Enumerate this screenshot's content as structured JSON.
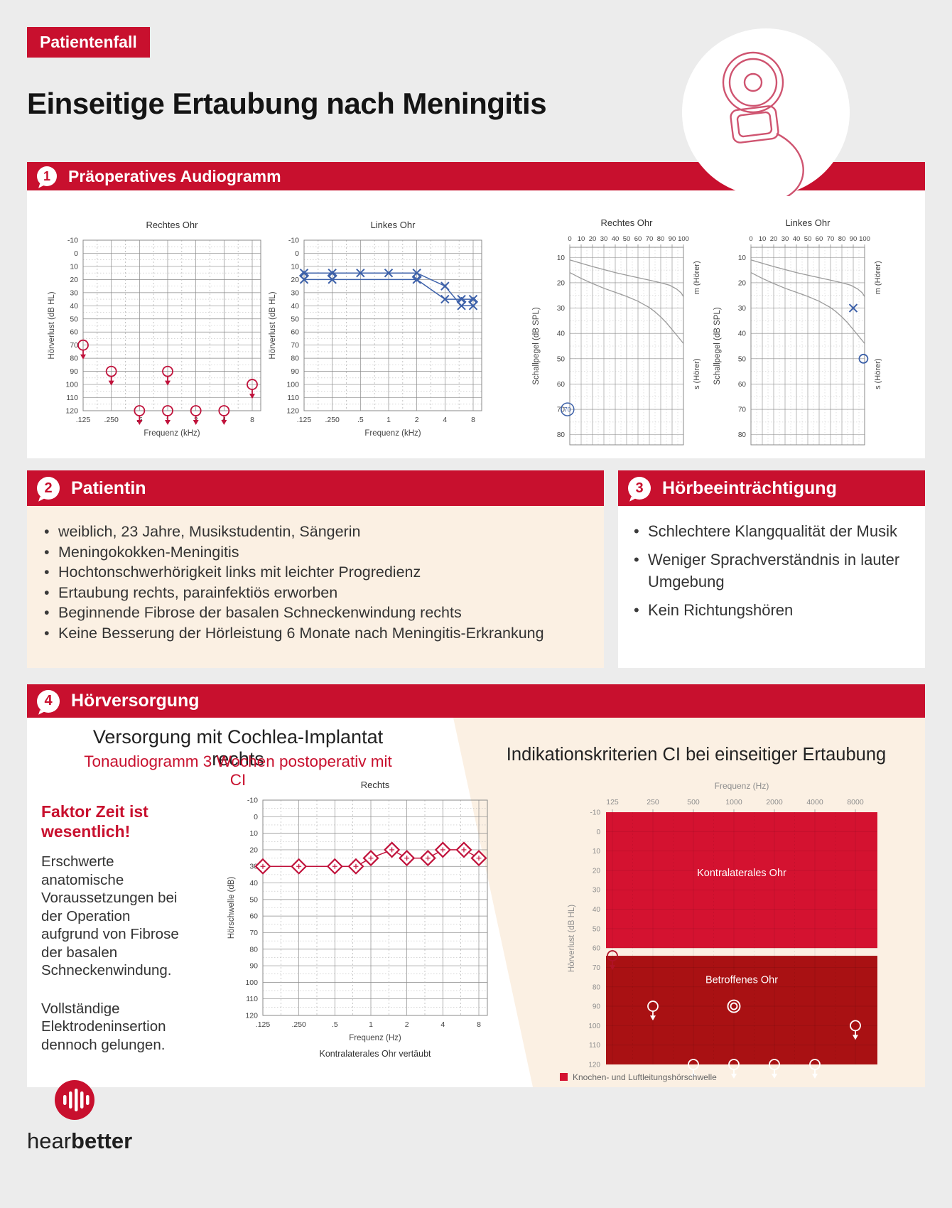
{
  "page": {
    "badge": "Patientenfall",
    "title": "Einseitige Ertaubung nach Meningitis"
  },
  "sections": {
    "s1": {
      "num": "1",
      "title": "Präoperatives Audiogramm"
    },
    "s2": {
      "num": "2",
      "title": "Patientin",
      "bullets": [
        "weiblich, 23 Jahre, Musikstudentin, Sängerin",
        "Meningokokken-Meningitis",
        "Hochtonschwerhörigkeit links mit leichter Progredienz",
        "Ertaubung rechts, parainfektiös erworben",
        "Beginnende Fibrose der basalen Schneckenwindung rechts",
        "Keine Besserung der Hörleistung 6 Monate nach Meningitis-Erkrankung"
      ]
    },
    "s3": {
      "num": "3",
      "title": "Hörbeeinträchtigung",
      "bullets": [
        "Schlechtere Klangqualität der Musik",
        "Weniger Sprachverständnis in lauter Umgebung",
        "Kein Richtungshören"
      ]
    },
    "s4": {
      "num": "4",
      "title": "Hörversorgung",
      "heading": "Versorgung mit Cochlea-Implantat rechts",
      "subheading": "Tonaudiogramm 3 Wochen postoperativ mit CI",
      "right_title": "Indikationskriterien CI bei einseitiger Ertaubung",
      "note_title": "Faktor Zeit ist wesentlich!",
      "note_p1": "Erschwerte anatomische Voraussetzungen bei der Operation aufgrund von Fibrose der basalen Schneckenwindung.",
      "note_p2": "Vollständige Elektrodeninsertion dennoch gelungen."
    }
  },
  "footer": {
    "brand_regular": "hear",
    "brand_bold": "better"
  },
  "colors": {
    "primary": "#c8102e",
    "zone_light": "#d41230",
    "zone_dark": "#a91113",
    "blue": "#3d61a9",
    "marker_red": "#c0123b",
    "curve_gray": "#9b9b9b",
    "cream": "#fbf0e3"
  },
  "chart_data": [
    {
      "id": "preop-rechtes-ohr",
      "type": "tone",
      "title": "Rechtes Ohr",
      "xlabel": "Frequenz (kHz)",
      "ylabel": "Hörverlust (dB HL)",
      "x_values": [
        0.125,
        0.25,
        0.5,
        1,
        2,
        4,
        8
      ],
      "x_ticks": [
        ".125",
        ".250",
        ".5",
        "1",
        "2",
        "4",
        "8"
      ],
      "ylim": [
        -10,
        120
      ],
      "series": [
        {
          "name": "Luftleitung rechts, keine Reaktion",
          "marker": "circle-arrow",
          "color": "#c0123b",
          "line": false,
          "points": [
            [
              0.125,
              70
            ],
            [
              0.25,
              90
            ],
            [
              0.5,
              120
            ],
            [
              1,
              90
            ],
            [
              1,
              120
            ],
            [
              2,
              120
            ],
            [
              4,
              120
            ],
            [
              8,
              100
            ]
          ]
        }
      ]
    },
    {
      "id": "preop-linkes-ohr",
      "type": "tone",
      "title": "Linkes Ohr",
      "xlabel": "Frequenz (kHz)",
      "ylabel": "Hörverlust (dB HL)",
      "x_values": [
        0.125,
        0.25,
        0.5,
        1,
        2,
        4,
        8
      ],
      "x_ticks": [
        ".125",
        ".250",
        ".5",
        "1",
        "2",
        "4",
        "8"
      ],
      "ylim": [
        -10,
        120
      ],
      "series": [
        {
          "name": "Luftleitung links",
          "marker": "x",
          "color": "#3d61a9",
          "line": true,
          "points": [
            [
              0.125,
              15
            ],
            [
              0.25,
              15
            ],
            [
              0.5,
              15
            ],
            [
              1,
              15
            ],
            [
              2,
              15
            ],
            [
              4,
              25
            ],
            [
              6,
              40
            ],
            [
              8,
              40
            ]
          ]
        },
        {
          "name": "Luftleitung links, Verlauf",
          "marker": "x",
          "color": "#3d61a9",
          "line": true,
          "points": [
            [
              0.125,
              20
            ],
            [
              0.25,
              20
            ],
            [
              2,
              20
            ],
            [
              4,
              35
            ],
            [
              6,
              35
            ],
            [
              8,
              35
            ]
          ]
        },
        {
          "name": "Knochenleitung links",
          "marker": "diamond",
          "color": "#3d61a9",
          "line": false,
          "points": [
            [
              0.125,
              17
            ],
            [
              0.25,
              17
            ],
            [
              2,
              18
            ],
            [
              6,
              37
            ],
            [
              8,
              37
            ]
          ]
        }
      ]
    },
    {
      "id": "sprachaudiogramm-rechtes-ohr",
      "type": "speech",
      "title": "Rechtes Ohr",
      "ylabel": "Schallpegel (dB SPL)",
      "top_ticks": [
        "0",
        "10",
        "20",
        "30",
        "40",
        "50",
        "60",
        "70",
        "80",
        "90",
        "100"
      ],
      "y_ticks": [
        "10",
        "20",
        "30",
        "40",
        "50",
        "60",
        "70",
        "80"
      ],
      "right_labels": [
        "m (Hörer)",
        "s (Hörer)"
      ],
      "curves": [
        {
          "name": "Normkurve Zahlen",
          "color": "#9b9b9b",
          "points": [
            [
              0,
              11
            ],
            [
              10,
              12.3
            ],
            [
              20,
              13.6
            ],
            [
              30,
              14.8
            ],
            [
              40,
              16
            ],
            [
              50,
              17
            ],
            [
              60,
              18
            ],
            [
              70,
              19
            ],
            [
              80,
              20
            ],
            [
              88,
              21
            ],
            [
              94,
              22.5
            ],
            [
              98,
              24
            ],
            [
              100,
              25.5
            ]
          ]
        },
        {
          "name": "Normkurve Einsilber",
          "color": "#9b9b9b",
          "points": [
            [
              0,
              16
            ],
            [
              10,
              18.3
            ],
            [
              20,
              20.3
            ],
            [
              30,
              22.2
            ],
            [
              40,
              23.8
            ],
            [
              50,
              25.4
            ],
            [
              60,
              27.3
            ],
            [
              70,
              29.8
            ],
            [
              75,
              31.5
            ],
            [
              80,
              33.5
            ],
            [
              85,
              35.8
            ],
            [
              90,
              38.5
            ],
            [
              95,
              41.2
            ],
            [
              100,
              44
            ]
          ]
        }
      ],
      "markers": [
        {
          "type": "circled-value",
          "label": "70",
          "x": -2,
          "y": 70,
          "color": "#3d61a9"
        }
      ]
    },
    {
      "id": "sprachaudiogramm-linkes-ohr",
      "type": "speech",
      "title": "Linkes Ohr",
      "ylabel": "Schallpegel (dB SPL)",
      "top_ticks": [
        "0",
        "10",
        "20",
        "30",
        "40",
        "50",
        "60",
        "70",
        "80",
        "90",
        "100"
      ],
      "y_ticks": [
        "10",
        "20",
        "30",
        "40",
        "50",
        "60",
        "70",
        "80"
      ],
      "right_labels": [
        "m (Hörer)",
        "s (Hörer)"
      ],
      "curves": [
        {
          "name": "Normkurve Zahlen",
          "color": "#9b9b9b",
          "points": [
            [
              0,
              11
            ],
            [
              10,
              12.3
            ],
            [
              20,
              13.6
            ],
            [
              30,
              14.8
            ],
            [
              40,
              16
            ],
            [
              50,
              17
            ],
            [
              60,
              18
            ],
            [
              70,
              19
            ],
            [
              80,
              20
            ],
            [
              88,
              21
            ],
            [
              94,
              22.5
            ],
            [
              98,
              24
            ],
            [
              100,
              25.5
            ]
          ]
        },
        {
          "name": "Normkurve Einsilber",
          "color": "#9b9b9b",
          "points": [
            [
              0,
              16
            ],
            [
              10,
              18.3
            ],
            [
              20,
              20.3
            ],
            [
              30,
              22.2
            ],
            [
              40,
              23.8
            ],
            [
              50,
              25.4
            ],
            [
              60,
              27.3
            ],
            [
              70,
              29.8
            ],
            [
              75,
              31.5
            ],
            [
              80,
              33.5
            ],
            [
              85,
              35.8
            ],
            [
              90,
              38.5
            ],
            [
              95,
              41.2
            ],
            [
              100,
              44
            ]
          ]
        }
      ],
      "markers": [
        {
          "type": "x",
          "x": 90,
          "y": 30,
          "color": "#3d61a9"
        },
        {
          "type": "o",
          "x": 99,
          "y": 50,
          "color": "#3d61a9"
        }
      ]
    },
    {
      "id": "postop-ci-rechts",
      "type": "tone",
      "title": "Rechts",
      "xlabel": "Frequenz (Hz)",
      "ylabel": "Hörschwelle (dB)",
      "caption": "Kontralaterales Ohr vertäubt",
      "x_values": [
        0.125,
        0.25,
        0.5,
        1,
        2,
        4,
        8
      ],
      "x_ticks": [
        ".125",
        ".250",
        ".5",
        "1",
        "2",
        "4",
        "8"
      ],
      "ylim": [
        -10,
        120
      ],
      "series": [
        {
          "name": "CI-Hörschwelle 3 Wochen postoperativ",
          "marker": "ci-diamond",
          "color": "#c0123b",
          "line": true,
          "points": [
            [
              0.125,
              30
            ],
            [
              0.25,
              30
            ],
            [
              0.5,
              30
            ],
            [
              0.75,
              30
            ],
            [
              1,
              25
            ],
            [
              1.5,
              20
            ],
            [
              2,
              25
            ],
            [
              3,
              25
            ],
            [
              4,
              20
            ],
            [
              6,
              20
            ],
            [
              8,
              25
            ]
          ]
        }
      ]
    },
    {
      "id": "indikationskriterien",
      "type": "zones",
      "top_label": "Frequenz (Hz)",
      "ylabel": "Hörverlust (dB HL)",
      "x_values": [
        125,
        250,
        500,
        1000,
        2000,
        4000,
        8000
      ],
      "x_ticks": [
        "125",
        "250",
        "500",
        "1000",
        "2000",
        "4000",
        "8000"
      ],
      "ylim": [
        -10,
        120
      ],
      "zones": [
        {
          "label": "Kontralaterales Ohr",
          "y_from": -10,
          "y_to": 60,
          "color": "#d41230"
        },
        {
          "label": "Betroffenes Ohr",
          "y_from": 64,
          "y_to": 120,
          "color": "#a91113"
        }
      ],
      "markers": [
        {
          "type": "circle-arrow",
          "x": 125,
          "y": 64,
          "color": "#b01226"
        },
        {
          "type": "circle-arrow",
          "x": 250,
          "y": 90,
          "color": "#ffffff"
        },
        {
          "type": "double-circle",
          "x": 1000,
          "y": 90,
          "color": "#ffffff"
        },
        {
          "type": "circle-arrow",
          "x": 500,
          "y": 120,
          "color": "#ffffff"
        },
        {
          "type": "circle-arrow",
          "x": 1000,
          "y": 120,
          "color": "#ffffff"
        },
        {
          "type": "circle-arrow",
          "x": 2000,
          "y": 120,
          "color": "#ffffff"
        },
        {
          "type": "circle-arrow",
          "x": 4000,
          "y": 120,
          "color": "#ffffff"
        },
        {
          "type": "circle-arrow",
          "x": 8000,
          "y": 100,
          "color": "#ffffff"
        }
      ],
      "legend": "Knochen- und Luftleitungshörschwelle"
    }
  ]
}
